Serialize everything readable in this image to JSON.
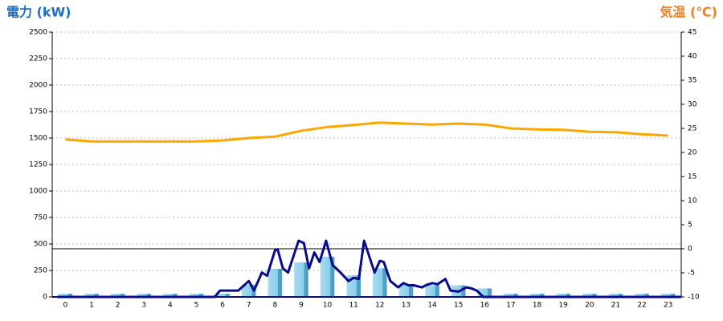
{
  "chart_data": {
    "type": "bar",
    "y_label": "電力 (kW)",
    "y2_label": "気温 (℃)",
    "categories": [
      "0",
      "1",
      "2",
      "3",
      "4",
      "5",
      "6",
      "7",
      "8",
      "9",
      "10",
      "11",
      "12",
      "13",
      "14",
      "15",
      "16",
      "17",
      "18",
      "19",
      "20",
      "21",
      "22",
      "23"
    ],
    "ylim": [
      0,
      2500
    ],
    "yticks": [
      0,
      250,
      500,
      750,
      1000,
      1250,
      1500,
      1750,
      2000,
      2250,
      2500
    ],
    "y2lim": [
      -10,
      45
    ],
    "y2ticks": [
      -10,
      -5,
      0,
      5,
      10,
      15,
      20,
      25,
      30,
      35,
      40,
      45
    ],
    "grid": true,
    "series": [
      {
        "type": "bar",
        "color": "#87ceeb",
        "values": [
          30,
          30,
          30,
          30,
          30,
          30,
          30,
          115,
          265,
          325,
          380,
          205,
          270,
          120,
          110,
          110,
          80,
          30,
          30,
          30,
          30,
          30,
          30,
          30
        ]
      },
      {
        "type": "line",
        "color": "#0a0a8c",
        "x": [
          -0.3,
          5.7,
          5.9,
          6.6,
          7.0,
          7.2,
          7.5,
          7.7,
          8.0,
          8.1,
          8.3,
          8.5,
          8.7,
          8.9,
          9.1,
          9.3,
          9.5,
          9.7,
          9.95,
          10.2,
          10.5,
          10.8,
          11.0,
          11.2,
          11.4,
          11.6,
          11.8,
          12.0,
          12.15,
          12.4,
          12.7,
          12.9,
          13.1,
          13.3,
          13.6,
          13.8,
          14.0,
          14.2,
          14.5,
          14.7,
          15.0,
          15.3,
          15.5,
          15.7,
          15.95,
          23.5
        ],
        "values": [
          0,
          0,
          60,
          60,
          150,
          60,
          230,
          200,
          440,
          450,
          270,
          230,
          380,
          530,
          510,
          270,
          420,
          330,
          530,
          300,
          230,
          150,
          180,
          170,
          530,
          380,
          230,
          340,
          330,
          150,
          90,
          130,
          110,
          110,
          90,
          115,
          130,
          120,
          170,
          60,
          50,
          90,
          80,
          60,
          0,
          0
        ]
      },
      {
        "type": "line",
        "axis": "y2",
        "color": "#ffa500",
        "values": [
          22.7,
          22.3,
          22.3,
          22.3,
          22.3,
          22.3,
          22.5,
          23,
          23.3,
          24.5,
          25.3,
          25.7,
          26.2,
          26,
          25.8,
          26,
          25.8,
          25,
          24.8,
          24.7,
          24.3,
          24.2,
          23.8,
          23.5
        ]
      }
    ]
  }
}
